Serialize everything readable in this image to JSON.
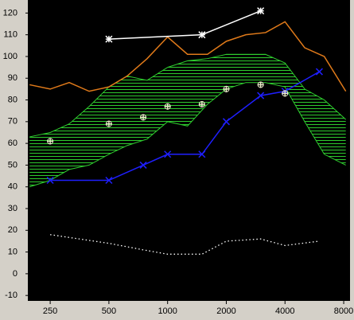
{
  "chart_data": {
    "type": "line",
    "xscale": "log",
    "xlim": [
      192,
      8620
    ],
    "ylim": [
      -12.5,
      126
    ],
    "xticks": [
      250,
      500,
      1000,
      2000,
      4000,
      8000
    ],
    "yticks": [
      -10,
      0,
      10,
      20,
      30,
      40,
      50,
      60,
      70,
      80,
      90,
      100,
      110,
      120
    ],
    "background": "#000000",
    "band": {
      "color": "#2ecc2e",
      "x": [
        196,
        250,
        313,
        396,
        500,
        620,
        785,
        1000,
        1265,
        1600,
        2000,
        2520,
        3180,
        4000,
        5050,
        6360,
        8200
      ],
      "upper": [
        63,
        65,
        69,
        77,
        86,
        91,
        89,
        95,
        98,
        99,
        101,
        101,
        101,
        97,
        85,
        80,
        71
      ],
      "lower": [
        40,
        43,
        48,
        50,
        55,
        59,
        62,
        70,
        68,
        78,
        85,
        88,
        88,
        86,
        70,
        55,
        50
      ]
    },
    "series": [
      {
        "color": "#e07a1a",
        "marker": "none",
        "dash": "solid",
        "x": [
          196,
          250,
          313,
          396,
          500,
          620,
          785,
          1000,
          1265,
          1600,
          2000,
          2520,
          3180,
          4000,
          5050,
          6360,
          8200
        ],
        "values": [
          87,
          85,
          88,
          84,
          86,
          91,
          99,
          109,
          101,
          101,
          107,
          110,
          111,
          116,
          104,
          100,
          84
        ]
      },
      {
        "color": "#ffffff",
        "marker": "star",
        "dash": "solid",
        "x": [
          500,
          1500,
          3000
        ],
        "values": [
          108,
          110,
          121
        ]
      },
      {
        "color": "#1f1fff",
        "marker": "x",
        "dash": "solid",
        "x": [
          250,
          500,
          750,
          1000,
          1500,
          2000,
          3000,
          4000,
          6000
        ],
        "values": [
          43,
          43,
          50,
          55,
          55,
          70,
          82,
          84,
          93
        ]
      },
      {
        "color": "#ffffff",
        "marker": "none",
        "dash": "dotted",
        "x": [
          250,
          500,
          750,
          1000,
          1500,
          2000,
          3000,
          4000,
          6000
        ],
        "values": [
          18,
          14,
          11,
          9,
          9,
          15,
          16,
          13,
          15
        ]
      },
      {
        "color": "#e8e8c8",
        "marker": "target",
        "dash": "none",
        "x": [
          250,
          500,
          750,
          1000,
          1500,
          2000,
          3000,
          4000
        ],
        "values": [
          61,
          69,
          72,
          77,
          78,
          85,
          87,
          83
        ]
      }
    ]
  }
}
